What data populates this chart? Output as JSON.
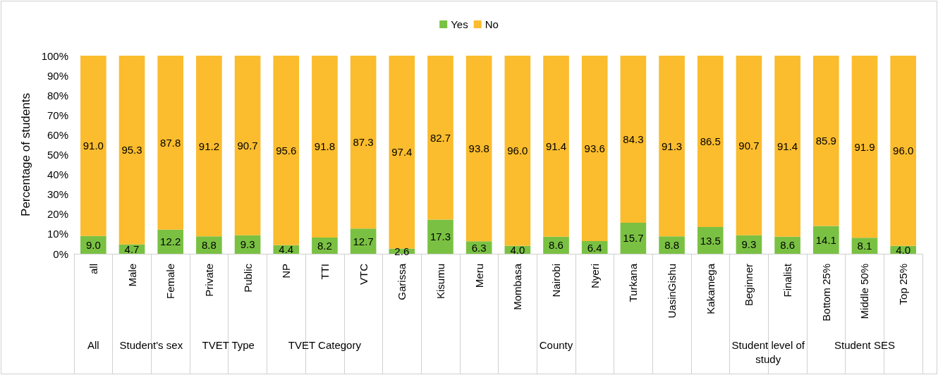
{
  "chart_data": {
    "type": "bar",
    "stacked": true,
    "ylabel": "Percentage of students",
    "categories": [
      "all",
      "Male",
      "Female",
      "Private",
      "Public",
      "NP",
      "TTI",
      "VTC",
      "Garissa",
      "Kisumu",
      "Meru",
      "Mombasa",
      "Nairobi",
      "Nyeri",
      "Turkana",
      "UasinGishu",
      "Kakamega",
      "Beginner",
      "Finalist",
      "Bottom 25%",
      "Middle 50%",
      "Top 25%"
    ],
    "series": [
      {
        "name": "Yes",
        "color": "#7ac143",
        "values": [
          9.0,
          4.7,
          12.2,
          8.8,
          9.3,
          4.4,
          8.2,
          12.7,
          2.6,
          17.3,
          6.3,
          4.0,
          8.6,
          6.4,
          15.7,
          8.8,
          13.5,
          9.3,
          8.6,
          14.1,
          8.1,
          4.0
        ],
        "value_labels": [
          "9.0",
          "4.7",
          "12.2",
          "8.8",
          "9.3",
          "4.4",
          "8.2",
          "12.7",
          "2.6",
          "17.3",
          "6.3",
          "4.0",
          "8.6",
          "6.4",
          "15.7",
          "8.8",
          "13.5",
          "9.3",
          "8.6",
          "14.1",
          "8.1",
          "4.0"
        ]
      },
      {
        "name": "No",
        "color": "#fbbc2d",
        "values": [
          91.0,
          95.3,
          87.8,
          91.2,
          90.7,
          95.6,
          91.8,
          87.3,
          97.4,
          82.7,
          93.8,
          96.0,
          91.4,
          93.6,
          84.3,
          91.3,
          86.5,
          90.7,
          91.4,
          85.9,
          91.9,
          96.0
        ],
        "value_labels": [
          "91.0",
          "95.3",
          "87.8",
          "91.2",
          "90.7",
          "95.6",
          "91.8",
          "87.3",
          "97.4",
          "82.7",
          "93.8",
          "96.0",
          "91.4",
          "93.6",
          "84.3",
          "91.3",
          "86.5",
          "90.7",
          "91.4",
          "85.9",
          "91.9",
          "96.0"
        ]
      }
    ],
    "ylim": [
      0,
      100
    ],
    "yticks": [
      {
        "value": 0,
        "label": "0%"
      },
      {
        "value": 10,
        "label": "10%"
      },
      {
        "value": 20,
        "label": "20%"
      },
      {
        "value": 30,
        "label": "30%"
      },
      {
        "value": 40,
        "label": "40%"
      },
      {
        "value": 50,
        "label": "50%"
      },
      {
        "value": 60,
        "label": "60%"
      },
      {
        "value": 70,
        "label": "70%"
      },
      {
        "value": 80,
        "label": "80%"
      },
      {
        "value": 90,
        "label": "90%"
      },
      {
        "value": 100,
        "label": "100%"
      }
    ],
    "annotations": [
      "All",
      "Student's sex",
      "TVET Type",
      "TVET Category",
      "County",
      "Student level of study",
      "Student SES"
    ],
    "grid": false,
    "legend": "top"
  }
}
